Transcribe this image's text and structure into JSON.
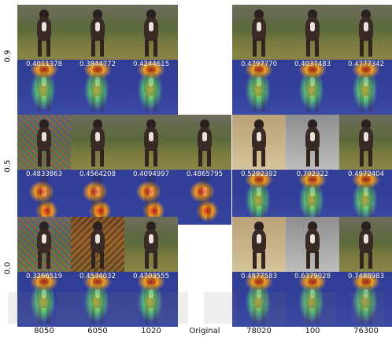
{
  "row_labels": [
    "0.9",
    "0.5",
    "0.0"
  ],
  "column_labels": [
    "8050",
    "6050",
    "1020",
    "Original",
    "78020",
    "100",
    "76300"
  ],
  "grid": [
    {
      "row": "0.9",
      "scores": [
        "0.4011378",
        "0.3844772",
        "0.4244615",
        "",
        "0.4797770",
        "0.4037483",
        "0.4777342"
      ],
      "present": [
        true,
        true,
        true,
        false,
        true,
        true,
        true
      ]
    },
    {
      "row": "0.5",
      "scores": [
        "0.4833863",
        "0.4564208",
        "0.4094997",
        "0.4865795",
        "0.5292392",
        "0.702322",
        "0.4972404"
      ],
      "present": [
        true,
        true,
        true,
        true,
        true,
        true,
        true
      ]
    },
    {
      "row": "0.0",
      "scores": [
        "0.3266519",
        "0.4534032",
        "0.4703555",
        "",
        "0.4877583",
        "0.6379028",
        "0.7488983"
      ],
      "present": [
        true,
        true,
        true,
        false,
        true,
        true,
        true
      ]
    }
  ]
}
